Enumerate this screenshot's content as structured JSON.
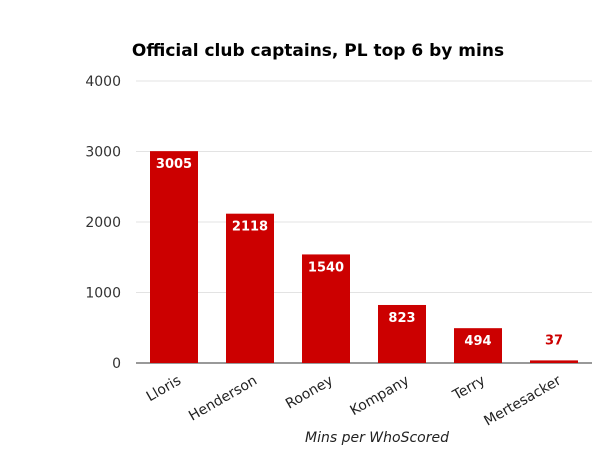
{
  "chart_data": {
    "type": "bar",
    "title": "Official club captains, PL top 6 by mins",
    "xlabel": "Mins per WhoScored",
    "ylabel": "",
    "categories": [
      "Lloris",
      "Henderson",
      "Rooney",
      "Kompany",
      "Terry",
      "Mertesacker"
    ],
    "values": [
      3005,
      2118,
      1540,
      823,
      494,
      37
    ],
    "ylim": [
      0,
      4000
    ],
    "yticks": [
      0,
      1000,
      2000,
      3000,
      4000
    ],
    "grid": true,
    "legend": "none",
    "colors": {
      "bar": "#cc0000",
      "label_inside": "#ffffff",
      "label_outside": "#cc0000"
    }
  }
}
